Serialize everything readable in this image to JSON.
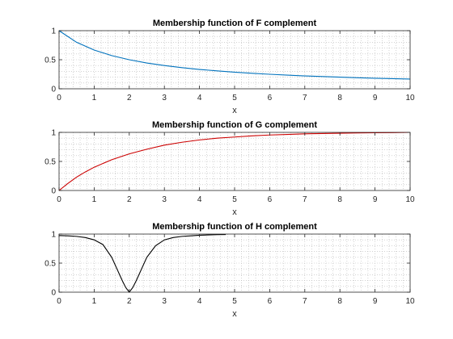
{
  "window": {
    "background": "#ffffff"
  },
  "chart_data": [
    {
      "type": "line",
      "title": "Membership function of F complement",
      "xlabel": "x",
      "ylabel": "",
      "xlim": [
        0,
        10
      ],
      "ylim": [
        0,
        1
      ],
      "xticks": [
        0,
        1,
        2,
        3,
        4,
        5,
        6,
        7,
        8,
        9,
        10
      ],
      "yticks": [
        0,
        0.5,
        1
      ],
      "grid": "minor-dotted",
      "series": [
        {
          "color": "#0072bd",
          "x": [
            0,
            0.5,
            1,
            1.5,
            2,
            2.5,
            3,
            3.5,
            4,
            4.5,
            5,
            5.5,
            6,
            6.5,
            7,
            7.5,
            8,
            8.5,
            9,
            9.5,
            10
          ],
          "y": [
            1.0,
            0.8,
            0.667,
            0.571,
            0.5,
            0.444,
            0.4,
            0.364,
            0.333,
            0.308,
            0.286,
            0.267,
            0.25,
            0.235,
            0.222,
            0.211,
            0.2,
            0.19,
            0.182,
            0.174,
            0.167
          ]
        }
      ]
    },
    {
      "type": "line",
      "title": "Membership function of G complement",
      "xlabel": "x",
      "ylabel": "",
      "xlim": [
        0,
        10
      ],
      "ylim": [
        0,
        1
      ],
      "xticks": [
        0,
        1,
        2,
        3,
        4,
        5,
        6,
        7,
        8,
        9,
        10
      ],
      "yticks": [
        0,
        0.5,
        1
      ],
      "grid": "minor-dotted",
      "series": [
        {
          "color": "#cc0000",
          "x": [
            0,
            0.25,
            0.5,
            0.75,
            1,
            1.5,
            2,
            2.5,
            3,
            3.5,
            4,
            4.5,
            5,
            5.5,
            6,
            6.5,
            7,
            7.5,
            8,
            8.5,
            9,
            9.5,
            10
          ],
          "y": [
            0.0,
            0.12,
            0.23,
            0.32,
            0.4,
            0.53,
            0.63,
            0.71,
            0.78,
            0.83,
            0.87,
            0.9,
            0.92,
            0.94,
            0.955,
            0.965,
            0.975,
            0.98,
            0.985,
            0.99,
            0.993,
            0.996,
            1.0
          ]
        }
      ]
    },
    {
      "type": "line",
      "title": "Membership function of H complement",
      "xlabel": "x",
      "ylabel": "",
      "xlim": [
        0,
        10
      ],
      "ylim": [
        0,
        1
      ],
      "xticks": [
        0,
        1,
        2,
        3,
        4,
        5,
        6,
        7,
        8,
        9,
        10
      ],
      "yticks": [
        0,
        0.5,
        1
      ],
      "grid": "minor-dotted",
      "series": [
        {
          "color": "#000000",
          "x": [
            0,
            0.25,
            0.5,
            0.75,
            1,
            1.25,
            1.5,
            1.65,
            1.8,
            1.9,
            2,
            2.1,
            2.2,
            2.35,
            2.5,
            2.75,
            3,
            3.25,
            3.5,
            3.75,
            4,
            4.25,
            4.5,
            4.75
          ],
          "y": [
            0.975,
            0.97,
            0.96,
            0.94,
            0.9,
            0.82,
            0.6,
            0.4,
            0.2,
            0.08,
            0.0,
            0.08,
            0.2,
            0.4,
            0.6,
            0.8,
            0.9,
            0.94,
            0.96,
            0.97,
            0.98,
            0.985,
            0.99,
            0.992
          ]
        }
      ]
    }
  ]
}
